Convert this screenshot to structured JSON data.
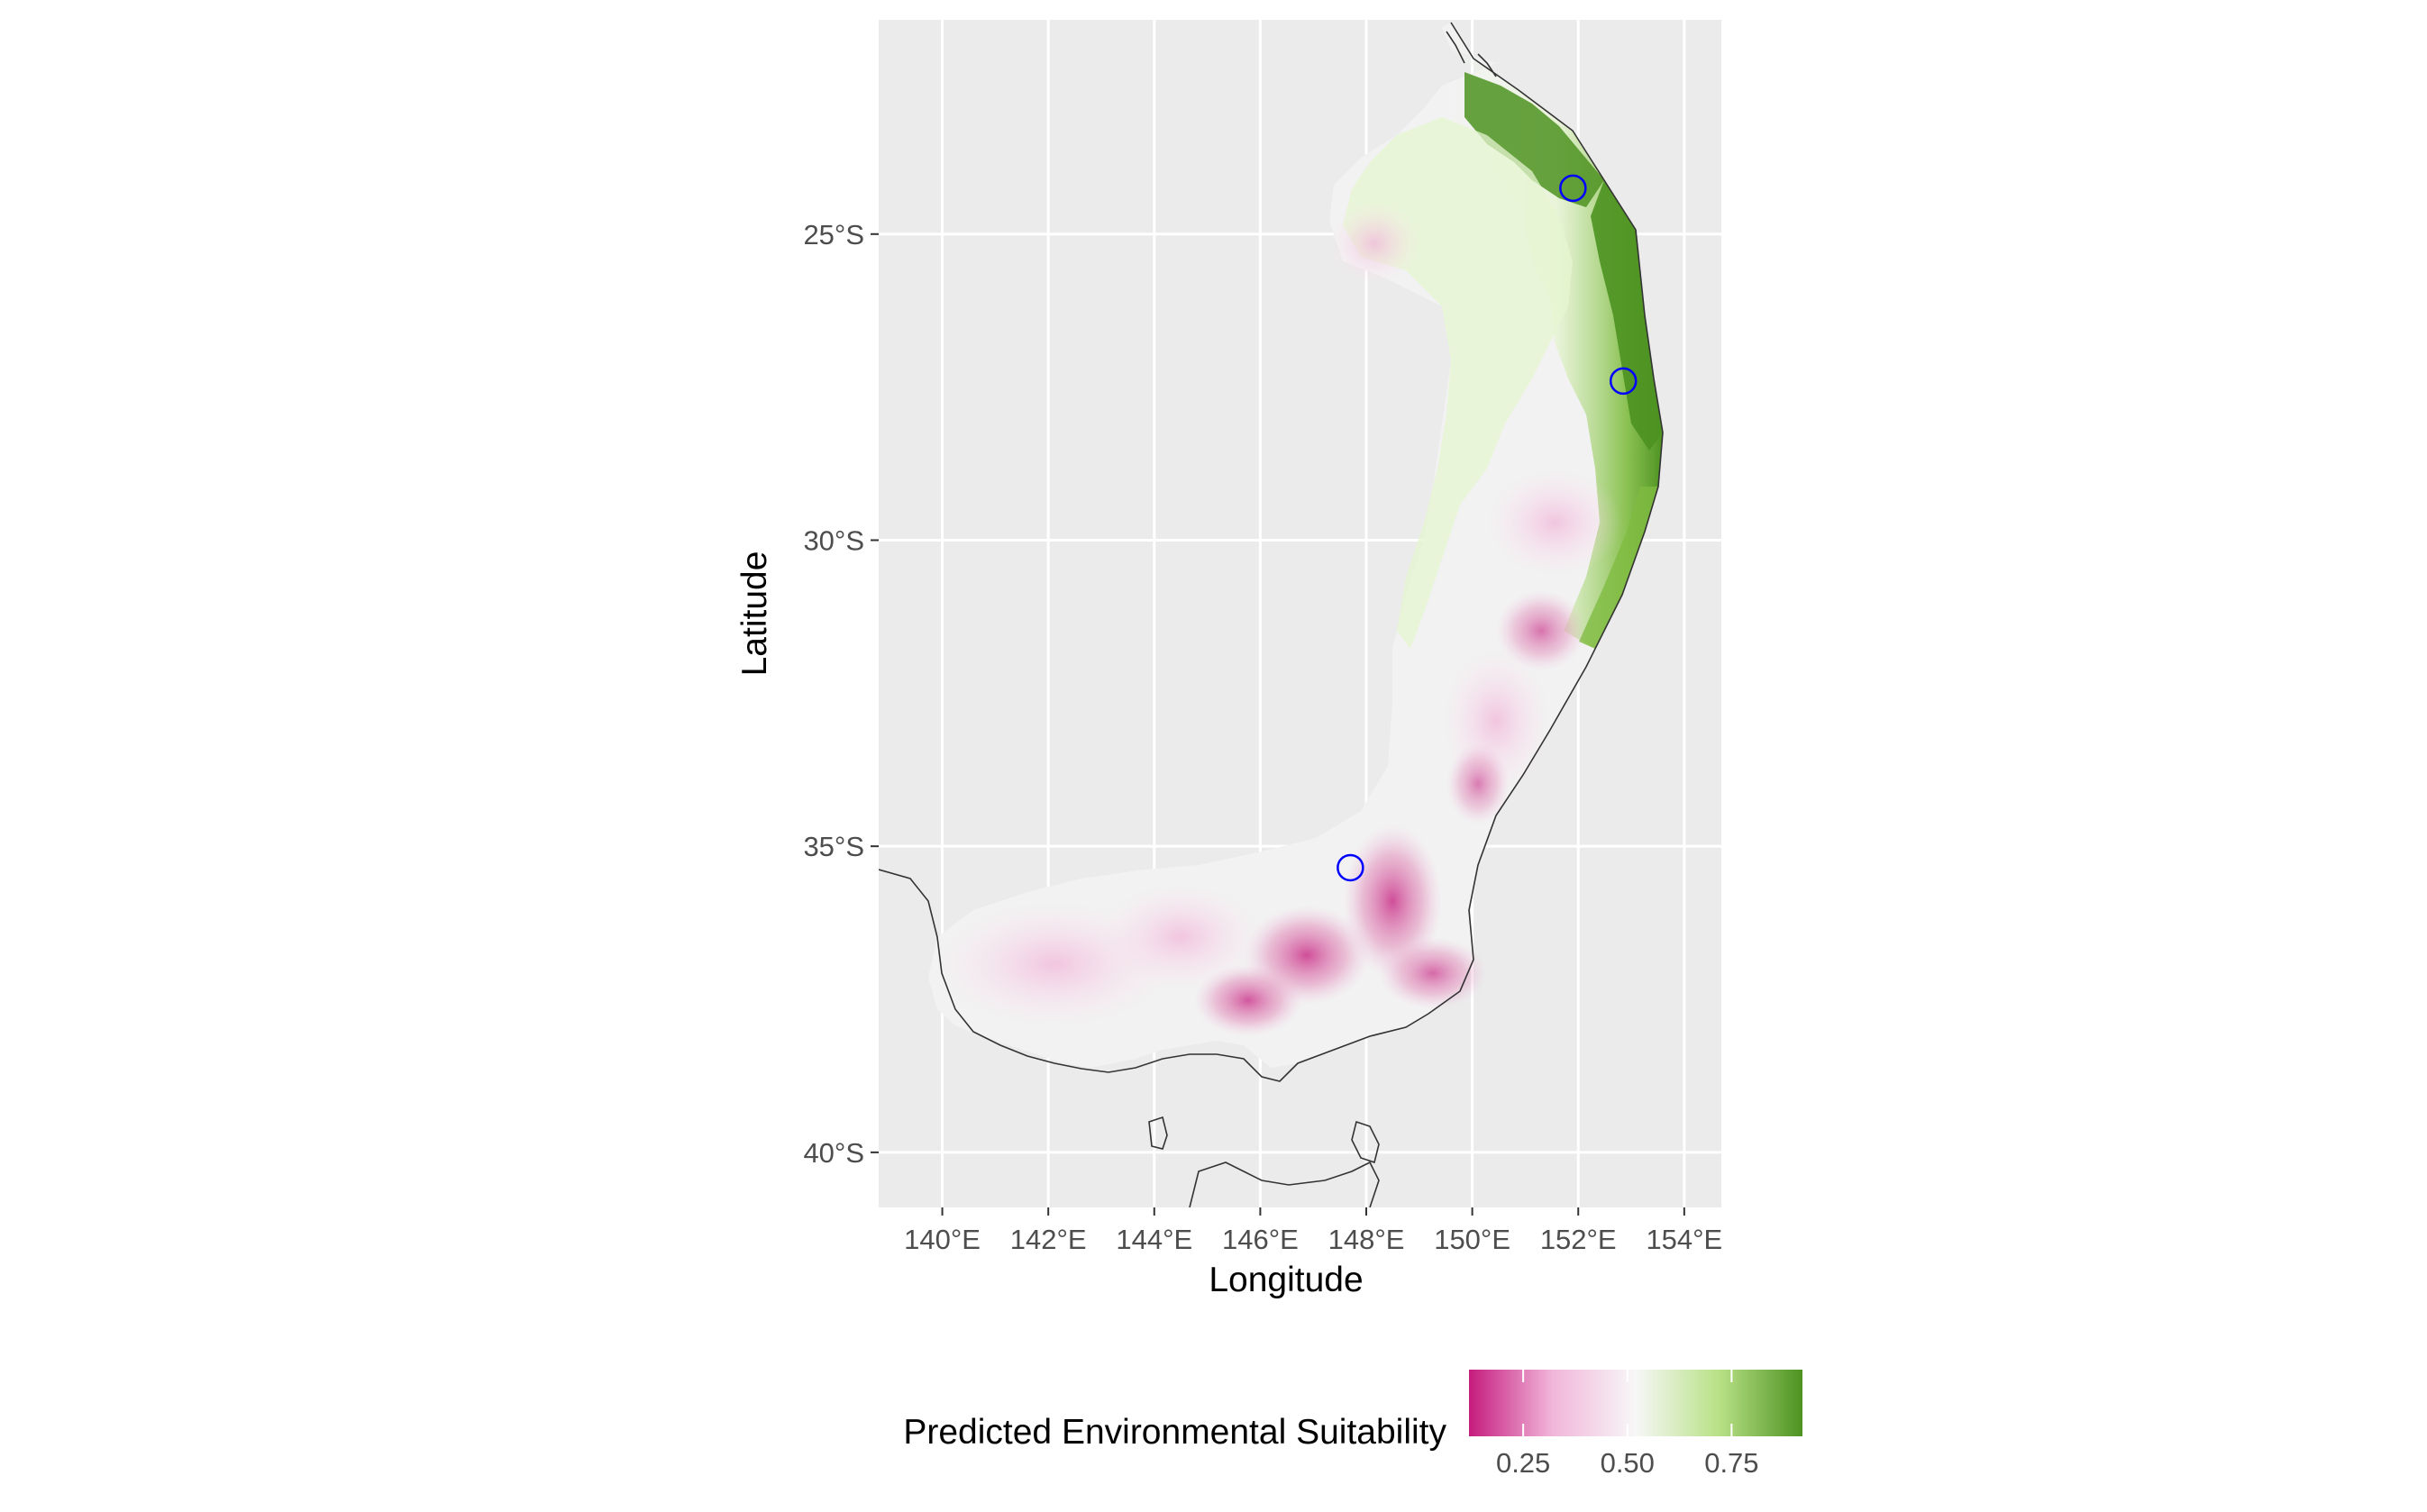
{
  "chart_data": {
    "type": "map",
    "xlabel": "Longitude",
    "ylabel": "Latitude",
    "x_ticks": [
      {
        "value": 140,
        "label": "140°E"
      },
      {
        "value": 142,
        "label": "142°E"
      },
      {
        "value": 144,
        "label": "144°E"
      },
      {
        "value": 146,
        "label": "146°E"
      },
      {
        "value": 148,
        "label": "148°E"
      },
      {
        "value": 150,
        "label": "150°E"
      },
      {
        "value": 152,
        "label": "152°E"
      },
      {
        "value": 154,
        "label": "154°E"
      }
    ],
    "y_ticks": [
      {
        "value": -25,
        "label": "25°S"
      },
      {
        "value": -30,
        "label": "30°S"
      },
      {
        "value": -35,
        "label": "35°S"
      },
      {
        "value": -40,
        "label": "40°S"
      }
    ],
    "xlim": [
      138.8,
      154.7
    ],
    "ylim": [
      -40.9,
      -21.5
    ],
    "grid": true,
    "points": [
      {
        "lon": 151.9,
        "lat": -24.25
      },
      {
        "lon": 152.85,
        "lat": -27.4
      },
      {
        "lon": 147.7,
        "lat": -35.35
      }
    ],
    "legend": {
      "position": "bottom",
      "title": "Predicted Environmental Suitability",
      "range": [
        0.12,
        0.92
      ],
      "ticks": [
        {
          "value": 0.25,
          "label": "0.25"
        },
        {
          "value": 0.5,
          "label": "0.50"
        },
        {
          "value": 0.75,
          "label": "0.75"
        }
      ],
      "colors": [
        "#c51b7d",
        "#f1b6da",
        "#f7f7f7",
        "#b8e186",
        "#4d9221"
      ]
    }
  },
  "colors": {
    "panel_background": "#ebebeb",
    "grid_line": "#ffffff",
    "coastline": "#333333",
    "point_outline": "#0000ff",
    "low_suitability": "#c51b7d",
    "high_suitability": "#4d9221"
  }
}
